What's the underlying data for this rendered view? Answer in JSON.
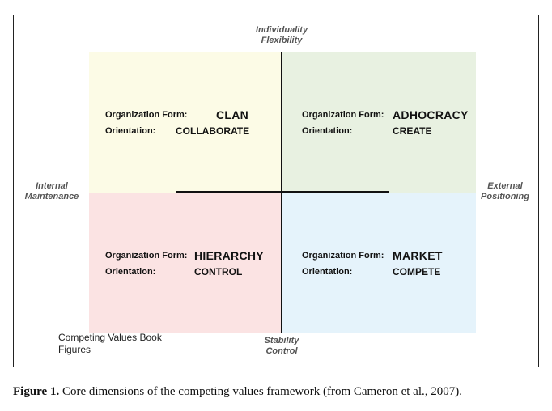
{
  "axes": {
    "top_line1": "Individuality",
    "top_line2": "Flexibility",
    "bottom_line1": "Stability",
    "bottom_line2": "Control",
    "left_line1": "Internal",
    "left_line2": "Maintenance",
    "right_line1": "External",
    "right_line2": "Positioning"
  },
  "quadrants": {
    "tl": {
      "form_label": "Organization Form:",
      "form_value": "CLAN",
      "orient_label": "Orientation:",
      "orient_value": "COLLABORATE",
      "color": "#fcfbe6"
    },
    "tr": {
      "form_label": "Organization Form:",
      "form_value": "ADHOCRACY",
      "orient_label": "Orientation:",
      "orient_value": "CREATE",
      "color": "#e8f1e1"
    },
    "bl": {
      "form_label": "Organization Form:",
      "form_value": "HIERARCHY",
      "orient_label": "Orientation:",
      "orient_value": "CONTROL",
      "color": "#fbe3e3"
    },
    "br": {
      "form_label": "Organization Form:",
      "form_value": "MARKET",
      "orient_label": "Orientation:",
      "orient_value": "COMPETE",
      "color": "#e5f3fb"
    }
  },
  "note": {
    "line1": "Competing Values Book",
    "line2": "Figures"
  },
  "caption": {
    "label": "Figure 1.",
    "text": "Core dimensions of the competing values framework (from Cameron et al., 2007)."
  }
}
